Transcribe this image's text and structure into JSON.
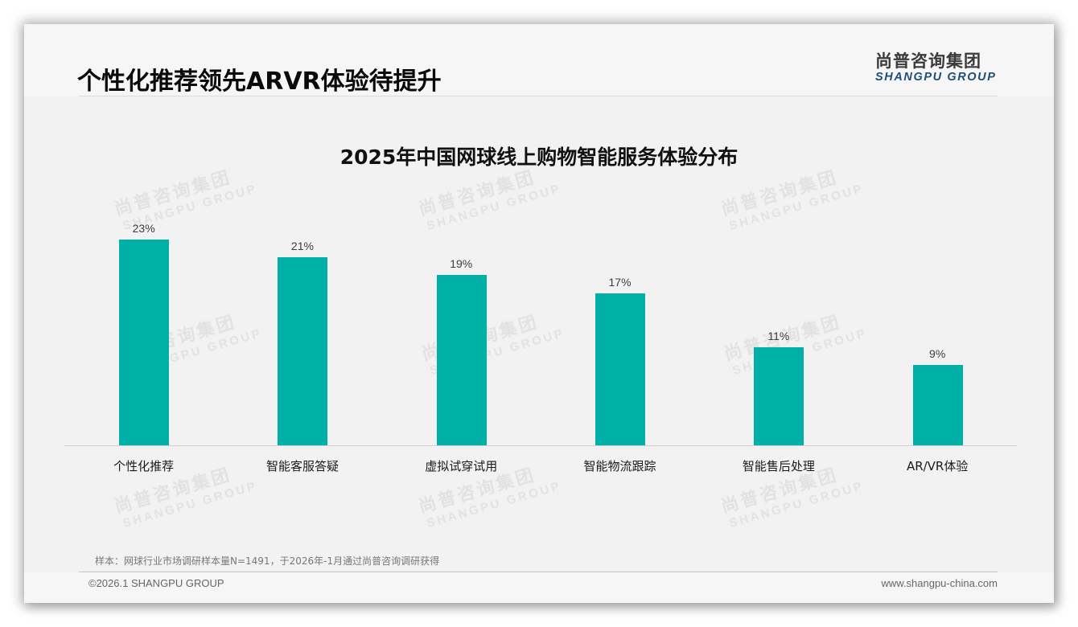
{
  "header": {
    "title": "个性化推荐领先ARVR体验待提升",
    "logo": {
      "cn": "尚普咨询集团",
      "en": "SHANGPU GROUP"
    }
  },
  "watermark": {
    "cn": "尚普咨询集团",
    "en": "SHANGPU GROUP"
  },
  "colors": {
    "bar": "#00b0a6",
    "logo_en": "#1f4e79",
    "background": "#f6f6f6"
  },
  "chart_data": {
    "type": "bar",
    "title": "2025年中国网球线上购物智能服务体验分布",
    "categories": [
      "个性化推荐",
      "智能客服答疑",
      "虚拟试穿试用",
      "智能物流跟踪",
      "智能售后处理",
      "AR/VR体验"
    ],
    "values": [
      23,
      21,
      19,
      17,
      11,
      9
    ],
    "value_labels": [
      "23%",
      "21%",
      "19%",
      "17%",
      "11%",
      "9%"
    ],
    "unit": "%",
    "xlabel": "",
    "ylabel": "",
    "ylim": [
      0,
      26.4
    ],
    "grid": false,
    "legend": "none",
    "y_axis_visible": false
  },
  "footer": {
    "note": "样本：网球行业市场调研样本量N=1491，于2026年-1月通过尚普咨询调研获得",
    "copyright": "©2026.1 SHANGPU GROUP",
    "website": "www.shangpu-china.com"
  }
}
